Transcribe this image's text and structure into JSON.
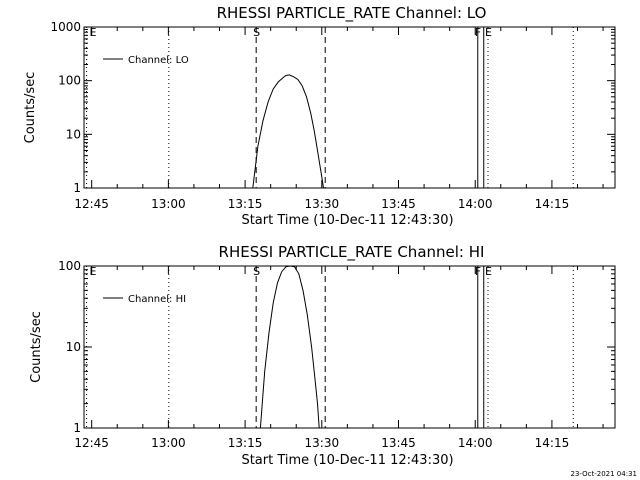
{
  "chart_data": [
    {
      "type": "line",
      "title": "RHESSI PARTICLE_RATE Channel: LO",
      "xlabel": "Start Time (10-Dec-11 12:43:30)",
      "ylabel": "Counts/sec",
      "y_scale": "log",
      "ylim": [
        1,
        1000
      ],
      "y_ticks": [
        1,
        10,
        100,
        1000
      ],
      "y_tick_labels": [
        "1",
        "10",
        "100",
        "1000"
      ],
      "xlim": [
        "12:43:30",
        "14:27:20"
      ],
      "x_ticks": [
        "12:45",
        "13:00",
        "13:15",
        "13:30",
        "13:45",
        "14:00",
        "14:15"
      ],
      "legend": {
        "position": "top-left",
        "entries": [
          "Channel: LO"
        ]
      },
      "grid": false,
      "series": [
        {
          "name": "Channel: LO",
          "color": "#000000",
          "x": [
            "13:16:30",
            "13:17:30",
            "13:18:30",
            "13:19:30",
            "13:20:30",
            "13:21:30",
            "13:22:30",
            "13:23:00",
            "13:23:40",
            "13:24:30",
            "13:25:20",
            "13:26:10",
            "13:27:00",
            "13:27:50",
            "13:28:30",
            "13:29:10",
            "13:29:40",
            "13:30:00",
            "13:30:20"
          ],
          "values": [
            1,
            6,
            18,
            40,
            70,
            95,
            115,
            125,
            128,
            118,
            105,
            80,
            50,
            25,
            12,
            5,
            2.5,
            1.6,
            1
          ]
        }
      ],
      "markers": [
        {
          "label": "E",
          "time": "12:44:00",
          "style": "dotted"
        },
        {
          "label": "",
          "time": "13:00:05",
          "style": "dotted"
        },
        {
          "label": "S",
          "time": "13:17:10",
          "style": "dashed"
        },
        {
          "label": "",
          "time": "13:30:40",
          "style": "dashed"
        },
        {
          "label": "F",
          "time": "14:00:30",
          "style": "solid"
        },
        {
          "label": "",
          "time": "14:01:40",
          "style": "solid"
        },
        {
          "label": "E",
          "time": "14:02:30",
          "style": "dotted"
        },
        {
          "label": "",
          "time": "14:19:10",
          "style": "dotted"
        }
      ]
    },
    {
      "type": "line",
      "title": "RHESSI PARTICLE_RATE Channel: HI",
      "xlabel": "Start Time (10-Dec-11 12:43:30)",
      "ylabel": "Counts/sec",
      "y_scale": "log",
      "ylim": [
        1,
        100
      ],
      "y_ticks": [
        1,
        10,
        100
      ],
      "y_tick_labels": [
        "1",
        "10",
        "100"
      ],
      "xlim": [
        "12:43:30",
        "14:27:20"
      ],
      "x_ticks": [
        "12:45",
        "13:00",
        "13:15",
        "13:30",
        "13:45",
        "14:00",
        "14:15"
      ],
      "legend": {
        "position": "top-left",
        "entries": [
          "Channel: HI"
        ]
      },
      "grid": false,
      "series": [
        {
          "name": "Channel: HI",
          "color": "#000000",
          "x": [
            "13:18:00",
            "13:18:50",
            "13:19:40",
            "13:20:30",
            "13:21:20",
            "13:22:10",
            "13:23:00",
            "13:23:50",
            "13:24:40",
            "13:25:30",
            "13:26:20",
            "13:27:10",
            "13:28:00",
            "13:28:40",
            "13:29:10",
            "13:29:30"
          ],
          "values": [
            1,
            5,
            15,
            35,
            62,
            85,
            98,
            100,
            98,
            80,
            50,
            25,
            10,
            4,
            2,
            1
          ]
        }
      ],
      "markers": [
        {
          "label": "E",
          "time": "12:44:00",
          "style": "dotted"
        },
        {
          "label": "",
          "time": "13:00:05",
          "style": "dotted"
        },
        {
          "label": "S",
          "time": "13:17:10",
          "style": "dashed"
        },
        {
          "label": "",
          "time": "13:30:40",
          "style": "dashed"
        },
        {
          "label": "F",
          "time": "14:00:30",
          "style": "solid"
        },
        {
          "label": "",
          "time": "14:01:40",
          "style": "solid"
        },
        {
          "label": "E",
          "time": "14:02:30",
          "style": "dotted"
        },
        {
          "label": "",
          "time": "14:19:10",
          "style": "dotted"
        }
      ]
    }
  ],
  "footer": {
    "timestamp": "23-Oct-2021 04:31"
  }
}
